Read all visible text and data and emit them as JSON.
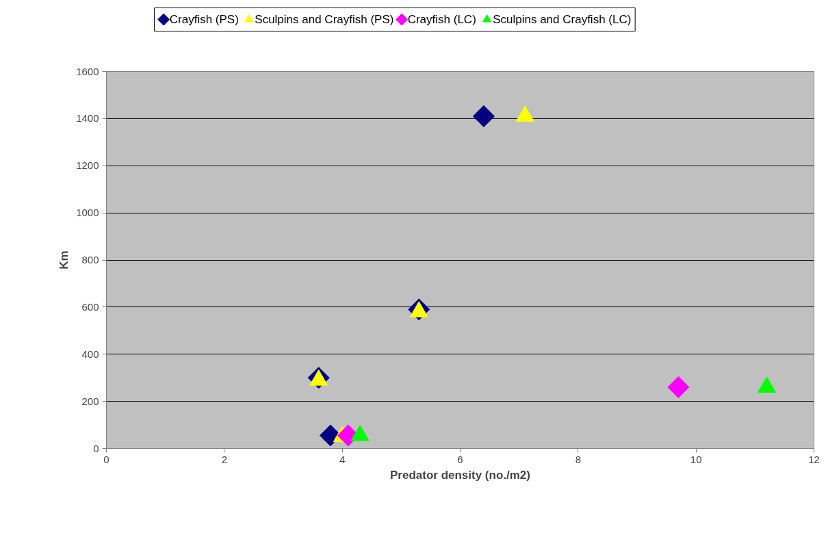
{
  "chart_data": {
    "type": "scatter",
    "xlabel": "Predator density (no./m2)",
    "ylabel": "Km",
    "xlim": [
      0,
      12
    ],
    "xticks": [
      0,
      2,
      4,
      6,
      8,
      10,
      12
    ],
    "ylim": [
      0,
      1600
    ],
    "yticks": [
      0,
      200,
      400,
      600,
      800,
      1000,
      1200,
      1400,
      1600
    ],
    "grid": "y",
    "legend": "top",
    "series": [
      {
        "name": "Crayfish (PS)",
        "color": "#000080",
        "marker": "diamond",
        "x": [
          3.6,
          3.8,
          5.3,
          6.4
        ],
        "values": [
          300,
          55,
          590,
          1410
        ]
      },
      {
        "name": "Sculpins and Crayfish (PS)",
        "color": "#ffff00",
        "marker": "triangle",
        "x": [
          3.6,
          4.0,
          5.3,
          7.1
        ],
        "values": [
          290,
          50,
          580,
          1410
        ]
      },
      {
        "name": "Crayfish (LC)",
        "color": "#ff00ff",
        "marker": "diamond",
        "x": [
          4.1,
          9.7
        ],
        "values": [
          55,
          260
        ]
      },
      {
        "name": "Sculpins and Crayfish (LC)",
        "color": "#00ff00",
        "marker": "triangle",
        "x": [
          4.3,
          11.2
        ],
        "values": [
          55,
          260
        ]
      }
    ]
  }
}
